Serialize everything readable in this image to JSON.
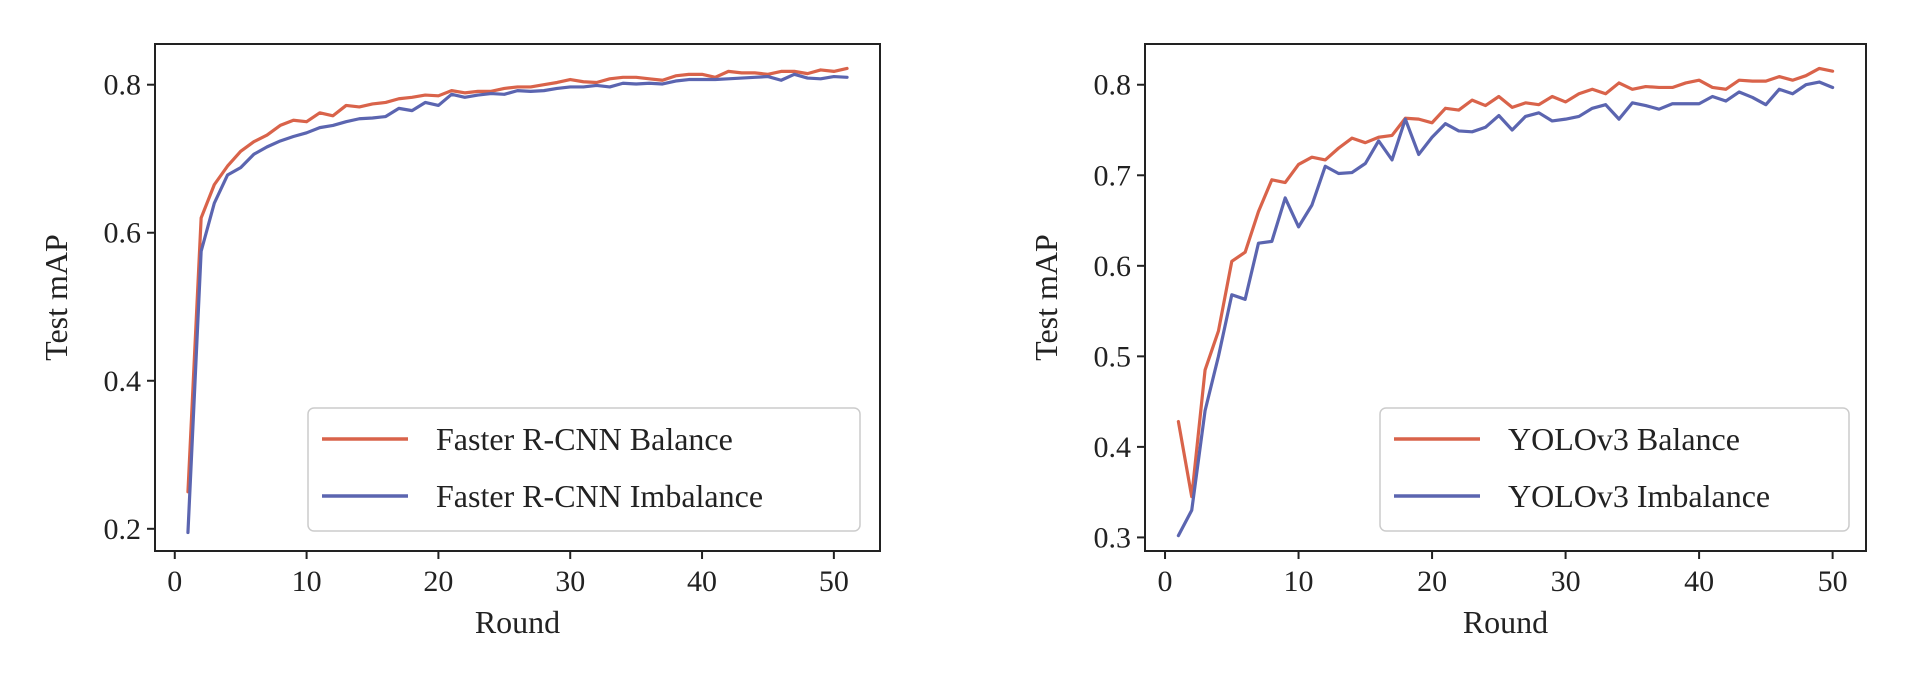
{
  "chart_data": [
    {
      "type": "line",
      "xlabel": "Round",
      "ylabel": "Test mAP",
      "xlim": [
        -1.5,
        53.5
      ],
      "ylim": [
        0.17,
        0.855
      ],
      "xticks": [
        0,
        10,
        20,
        30,
        40,
        50
      ],
      "yticks": [
        0.2,
        0.4,
        0.6,
        0.8
      ],
      "ytick_labels": [
        "0.2",
        "0.4",
        "0.6",
        "0.8"
      ],
      "grid": false,
      "legend": "bottom-right",
      "series": [
        {
          "name": "Faster R-CNN Balance",
          "color": "#d9634a",
          "x": [
            1,
            2,
            3,
            4,
            5,
            6,
            7,
            8,
            9,
            10,
            11,
            12,
            13,
            14,
            15,
            16,
            17,
            18,
            19,
            20,
            21,
            22,
            23,
            24,
            25,
            26,
            27,
            28,
            29,
            30,
            31,
            32,
            33,
            34,
            35,
            36,
            37,
            38,
            39,
            40,
            41,
            42,
            43,
            44,
            45,
            46,
            47,
            48,
            49,
            50,
            51
          ],
          "y": [
            0.25,
            0.62,
            0.665,
            0.69,
            0.71,
            0.723,
            0.732,
            0.745,
            0.752,
            0.75,
            0.762,
            0.758,
            0.772,
            0.77,
            0.774,
            0.776,
            0.781,
            0.783,
            0.786,
            0.785,
            0.792,
            0.789,
            0.791,
            0.791,
            0.795,
            0.797,
            0.797,
            0.8,
            0.803,
            0.807,
            0.804,
            0.803,
            0.808,
            0.81,
            0.81,
            0.808,
            0.806,
            0.812,
            0.814,
            0.814,
            0.81,
            0.818,
            0.816,
            0.816,
            0.814,
            0.818,
            0.818,
            0.815,
            0.82,
            0.818,
            0.822
          ]
        },
        {
          "name": "Faster R-CNN Imbalance",
          "color": "#5b65b0",
          "x": [
            1,
            2,
            3,
            4,
            5,
            6,
            7,
            8,
            9,
            10,
            11,
            12,
            13,
            14,
            15,
            16,
            17,
            18,
            19,
            20,
            21,
            22,
            23,
            24,
            25,
            26,
            27,
            28,
            29,
            30,
            31,
            32,
            33,
            34,
            35,
            36,
            37,
            38,
            39,
            40,
            41,
            42,
            43,
            44,
            45,
            46,
            47,
            48,
            49,
            50,
            51
          ],
          "y": [
            0.195,
            0.575,
            0.64,
            0.678,
            0.688,
            0.706,
            0.716,
            0.724,
            0.73,
            0.735,
            0.742,
            0.745,
            0.75,
            0.754,
            0.755,
            0.757,
            0.768,
            0.765,
            0.776,
            0.772,
            0.787,
            0.783,
            0.786,
            0.788,
            0.787,
            0.792,
            0.791,
            0.792,
            0.795,
            0.797,
            0.797,
            0.799,
            0.797,
            0.802,
            0.801,
            0.802,
            0.801,
            0.805,
            0.807,
            0.807,
            0.807,
            0.808,
            0.809,
            0.81,
            0.811,
            0.806,
            0.814,
            0.809,
            0.808,
            0.811,
            0.81
          ]
        }
      ]
    },
    {
      "type": "line",
      "xlabel": "Round",
      "ylabel": "Test mAP",
      "xlim": [
        -1.5,
        52.5
      ],
      "ylim": [
        0.285,
        0.845
      ],
      "xticks": [
        0,
        10,
        20,
        30,
        40,
        50
      ],
      "yticks": [
        0.3,
        0.4,
        0.5,
        0.6,
        0.7,
        0.8
      ],
      "ytick_labels": [
        "0.3",
        "0.4",
        "0.5",
        "0.6",
        "0.7",
        "0.8"
      ],
      "grid": false,
      "legend": "bottom-right",
      "series": [
        {
          "name": "YOLOv3 Balance",
          "color": "#d9634a",
          "x": [
            1,
            2,
            3,
            4,
            5,
            6,
            7,
            8,
            9,
            10,
            11,
            12,
            13,
            14,
            15,
            16,
            17,
            18,
            19,
            20,
            21,
            22,
            23,
            24,
            25,
            26,
            27,
            28,
            29,
            30,
            31,
            32,
            33,
            34,
            35,
            36,
            37,
            38,
            39,
            40,
            41,
            42,
            43,
            44,
            45,
            46,
            47,
            48,
            49,
            50
          ],
          "y": [
            0.428,
            0.345,
            0.485,
            0.528,
            0.605,
            0.615,
            0.66,
            0.695,
            0.692,
            0.712,
            0.72,
            0.717,
            0.73,
            0.741,
            0.736,
            0.742,
            0.744,
            0.763,
            0.762,
            0.758,
            0.774,
            0.772,
            0.783,
            0.777,
            0.787,
            0.775,
            0.78,
            0.778,
            0.787,
            0.781,
            0.79,
            0.795,
            0.79,
            0.802,
            0.795,
            0.798,
            0.797,
            0.797,
            0.802,
            0.805,
            0.797,
            0.795,
            0.805,
            0.804,
            0.804,
            0.809,
            0.805,
            0.81,
            0.818,
            0.815
          ]
        },
        {
          "name": "YOLOv3 Imbalance",
          "color": "#5b65b0",
          "x": [
            1,
            2,
            3,
            4,
            5,
            6,
            7,
            8,
            9,
            10,
            11,
            12,
            13,
            14,
            15,
            16,
            17,
            18,
            19,
            20,
            21,
            22,
            23,
            24,
            25,
            26,
            27,
            28,
            29,
            30,
            31,
            32,
            33,
            34,
            35,
            36,
            37,
            38,
            39,
            40,
            41,
            42,
            43,
            44,
            45,
            46,
            47,
            48,
            49,
            50
          ],
          "y": [
            0.302,
            0.33,
            0.44,
            0.5,
            0.568,
            0.563,
            0.625,
            0.627,
            0.675,
            0.643,
            0.667,
            0.71,
            0.702,
            0.703,
            0.713,
            0.738,
            0.717,
            0.762,
            0.723,
            0.742,
            0.757,
            0.749,
            0.748,
            0.753,
            0.766,
            0.75,
            0.765,
            0.769,
            0.76,
            0.762,
            0.765,
            0.774,
            0.778,
            0.762,
            0.78,
            0.777,
            0.773,
            0.779,
            0.779,
            0.779,
            0.787,
            0.782,
            0.792,
            0.786,
            0.778,
            0.795,
            0.79,
            0.8,
            0.803,
            0.797
          ]
        }
      ]
    }
  ]
}
